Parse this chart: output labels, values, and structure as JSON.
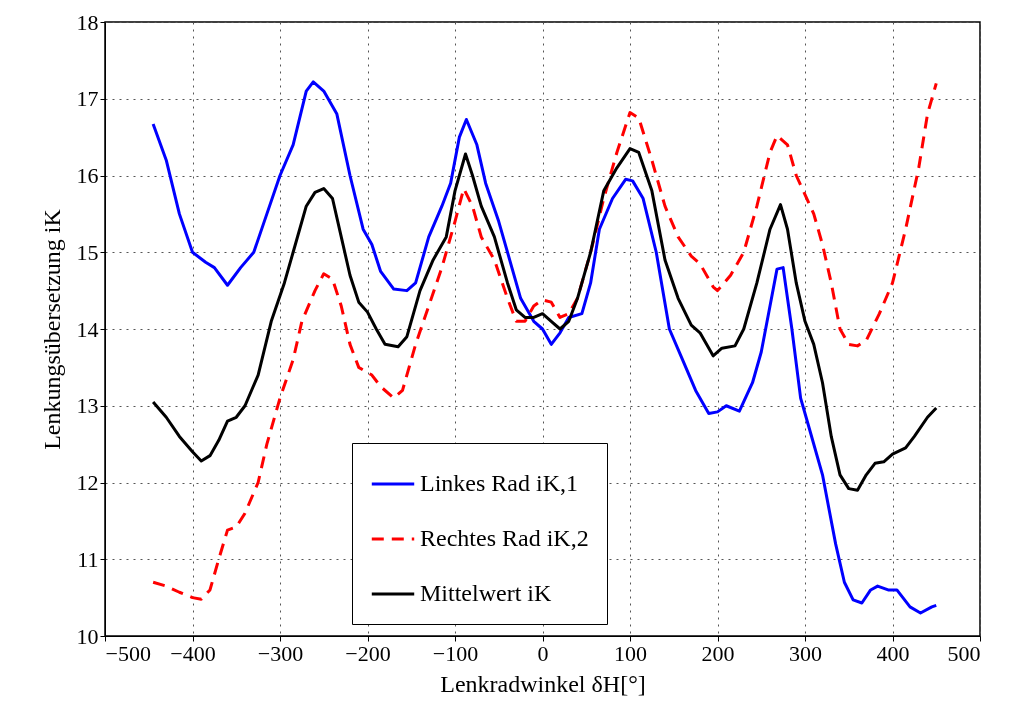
{
  "chart_data": {
    "type": "line",
    "xlabel": "Lenkradwinkel δH[°]",
    "ylabel": "Lenkungsübersetzung iK",
    "xlim": [
      -500,
      500
    ],
    "xticks": [
      -500,
      -400,
      -300,
      -200,
      -100,
      0,
      100,
      200,
      300,
      400,
      500
    ],
    "ylim": [
      10,
      18
    ],
    "yticks": [
      10,
      11,
      12,
      13,
      14,
      15,
      16,
      17,
      18
    ],
    "grid": true,
    "legend": "bottom",
    "marker": "none",
    "series": [
      {
        "name": "Linkes Rad iK,1",
        "color": "#0000ff",
        "line_style": "solid",
        "x": [
          -445,
          -430,
          -415,
          -400,
          -385,
          -375,
          -360,
          -345,
          -330,
          -315,
          -300,
          -285,
          -270,
          -262,
          -250,
          -235,
          -220,
          -205,
          -195,
          -185,
          -170,
          -155,
          -145,
          -130,
          -115,
          -105,
          -95,
          -87,
          -75,
          -65,
          -50,
          -35,
          -25,
          -10,
          0,
          10,
          20,
          30,
          45,
          55,
          65,
          80,
          95,
          103,
          115,
          130,
          145,
          160,
          175,
          190,
          200,
          210,
          225,
          240,
          250,
          260,
          268,
          275,
          285,
          295,
          305,
          320,
          335,
          345,
          355,
          365,
          375,
          383,
          395,
          405,
          420,
          432,
          445,
          450
        ],
        "values": [
          16.67,
          16.2,
          15.5,
          15.0,
          14.87,
          14.8,
          14.57,
          14.8,
          15.0,
          15.5,
          16.0,
          16.4,
          17.1,
          17.22,
          17.1,
          16.8,
          16.0,
          15.3,
          15.1,
          14.75,
          14.52,
          14.5,
          14.6,
          15.2,
          15.6,
          15.9,
          16.5,
          16.73,
          16.4,
          15.9,
          15.4,
          14.8,
          14.4,
          14.1,
          14.0,
          13.8,
          13.95,
          14.15,
          14.2,
          14.6,
          15.3,
          15.7,
          15.95,
          15.93,
          15.7,
          15.0,
          14.0,
          13.6,
          13.2,
          12.9,
          12.92,
          13.0,
          12.93,
          13.3,
          13.7,
          14.3,
          14.78,
          14.8,
          14.0,
          13.1,
          12.7,
          12.1,
          11.2,
          10.7,
          10.47,
          10.43,
          10.6,
          10.65,
          10.6,
          10.6,
          10.38,
          10.3,
          10.38,
          10.4
        ]
      },
      {
        "name": "Rechtes Rad iK,2",
        "color": "#ff0000",
        "line_style": "dashed",
        "x": [
          -445,
          -430,
          -415,
          -400,
          -390,
          -380,
          -370,
          -360,
          -350,
          -340,
          -325,
          -315,
          -300,
          -285,
          -275,
          -260,
          -250,
          -240,
          -230,
          -220,
          -210,
          -195,
          -185,
          -170,
          -160,
          -145,
          -130,
          -115,
          -100,
          -90,
          -80,
          -70,
          -55,
          -40,
          -30,
          -20,
          -10,
          0,
          10,
          20,
          30,
          40,
          55,
          70,
          85,
          100,
          110,
          125,
          140,
          155,
          170,
          180,
          195,
          200,
          215,
          230,
          245,
          260,
          268,
          280,
          290,
          300,
          310,
          320,
          330,
          340,
          350,
          360,
          370,
          385,
          400,
          415,
          430,
          440,
          450
        ],
        "values": [
          10.7,
          10.65,
          10.57,
          10.5,
          10.48,
          10.6,
          11.0,
          11.38,
          11.42,
          11.6,
          12.0,
          12.5,
          13.1,
          13.6,
          14.1,
          14.5,
          14.72,
          14.65,
          14.3,
          13.8,
          13.5,
          13.4,
          13.25,
          13.1,
          13.2,
          13.8,
          14.3,
          14.8,
          15.4,
          15.83,
          15.6,
          15.2,
          14.9,
          14.4,
          14.1,
          14.1,
          14.3,
          14.38,
          14.35,
          14.15,
          14.2,
          14.4,
          15.0,
          15.7,
          16.3,
          16.82,
          16.75,
          16.2,
          15.6,
          15.2,
          14.95,
          14.85,
          14.55,
          14.5,
          14.7,
          15.0,
          15.6,
          16.3,
          16.52,
          16.4,
          16.0,
          15.75,
          15.5,
          15.1,
          14.6,
          14.0,
          13.8,
          13.78,
          13.85,
          14.2,
          14.6,
          15.3,
          16.1,
          16.8,
          17.2
        ]
      },
      {
        "name": "Mittelwert iK",
        "color": "#000000",
        "line_style": "solid",
        "x": [
          -445,
          -430,
          -415,
          -400,
          -390,
          -380,
          -370,
          -360,
          -350,
          -340,
          -325,
          -310,
          -295,
          -285,
          -270,
          -260,
          -250,
          -240,
          -230,
          -220,
          -210,
          -200,
          -190,
          -180,
          -165,
          -155,
          -140,
          -125,
          -110,
          -100,
          -88,
          -80,
          -70,
          -55,
          -40,
          -30,
          -20,
          -10,
          0,
          10,
          20,
          30,
          40,
          55,
          70,
          85,
          100,
          110,
          125,
          140,
          155,
          170,
          180,
          195,
          205,
          220,
          230,
          245,
          260,
          272,
          280,
          290,
          300,
          310,
          320,
          330,
          340,
          350,
          360,
          370,
          380,
          390,
          400,
          415,
          425,
          440,
          450
        ],
        "values": [
          13.05,
          12.85,
          12.6,
          12.4,
          12.28,
          12.35,
          12.55,
          12.8,
          12.85,
          13.0,
          13.4,
          14.1,
          14.6,
          15.0,
          15.6,
          15.78,
          15.83,
          15.7,
          15.2,
          14.7,
          14.35,
          14.22,
          14.0,
          13.8,
          13.77,
          13.9,
          14.5,
          14.9,
          15.2,
          15.8,
          16.28,
          16.0,
          15.6,
          15.2,
          14.6,
          14.25,
          14.15,
          14.15,
          14.2,
          14.1,
          14.0,
          14.1,
          14.4,
          15.0,
          15.8,
          16.1,
          16.35,
          16.3,
          15.8,
          14.9,
          14.4,
          14.05,
          13.95,
          13.65,
          13.75,
          13.78,
          14.0,
          14.6,
          15.3,
          15.62,
          15.3,
          14.6,
          14.1,
          13.8,
          13.3,
          12.6,
          12.1,
          11.92,
          11.9,
          12.1,
          12.25,
          12.27,
          12.37,
          12.45,
          12.6,
          12.85,
          12.97
        ]
      }
    ]
  }
}
